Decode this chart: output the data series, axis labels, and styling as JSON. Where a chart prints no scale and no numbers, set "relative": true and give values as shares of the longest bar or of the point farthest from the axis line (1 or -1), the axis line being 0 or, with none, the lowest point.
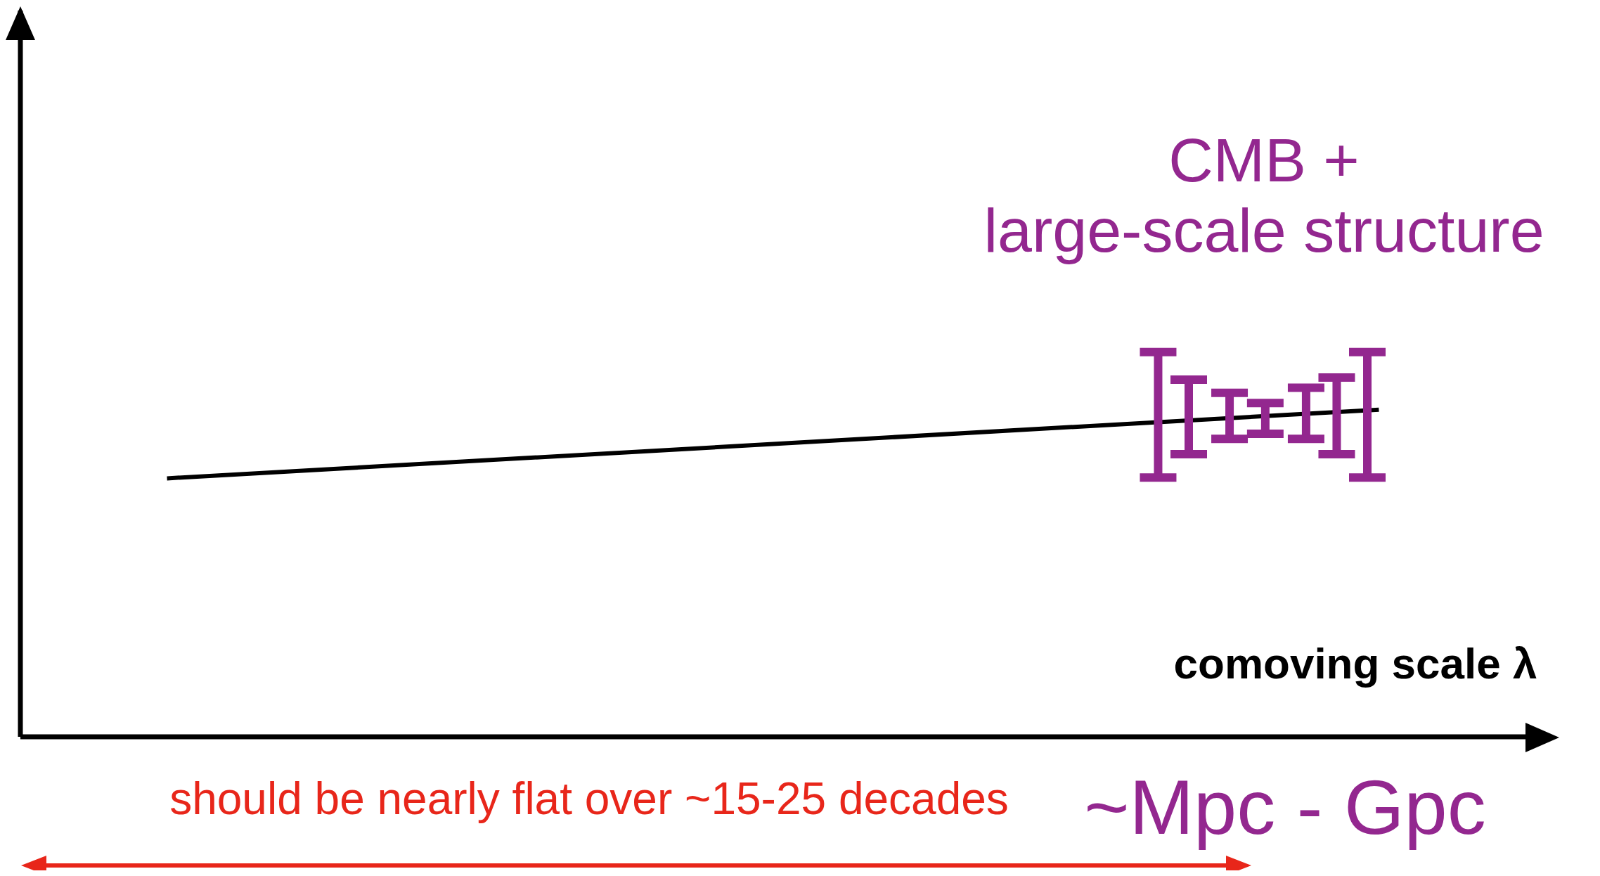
{
  "chart_data": {
    "type": "line",
    "relative": true,
    "xlabel": "comoving scale λ",
    "marker": "none",
    "legend": false,
    "grid": false,
    "categories": [
      null,
      null
    ],
    "series": [
      {
        "color": "#000000",
        "values": [
          0.79,
          1
        ]
      }
    ],
    "annotations": [
      "CMB +\nlarge-scale structure",
      "~Mpc - Gpc",
      "should be nearly flat over ~15-25 decades"
    ]
  }
}
